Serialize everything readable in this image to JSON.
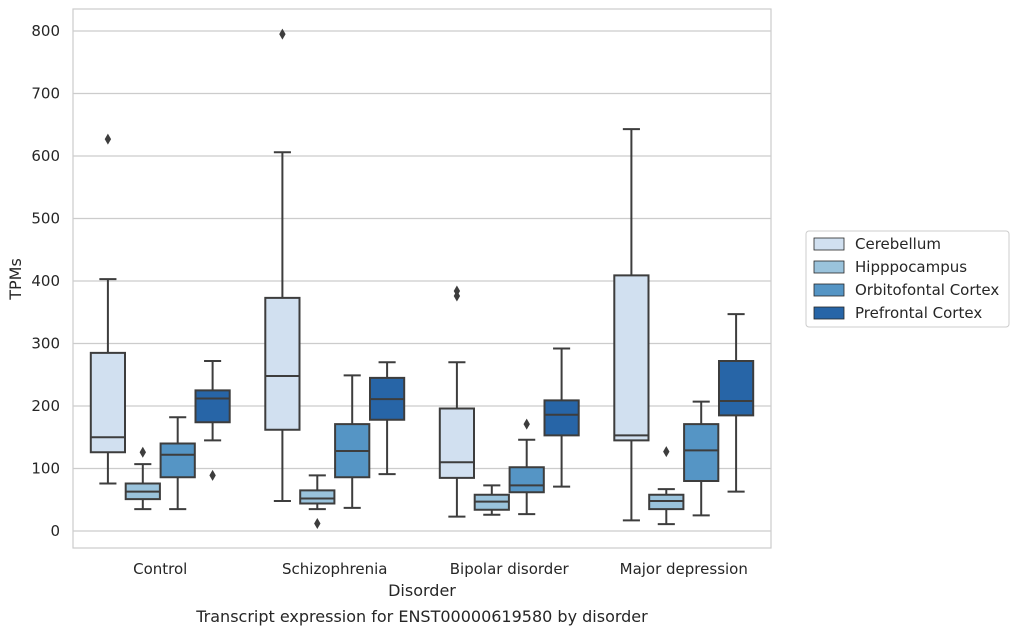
{
  "chart_data": {
    "type": "box",
    "title": "",
    "caption": "Transcript expression for ENST00000619580 by disorder",
    "xlabel": "Disorder",
    "ylabel": "TPMs",
    "ylim": [
      -28,
      835
    ],
    "yticks": [
      0,
      100,
      200,
      300,
      400,
      500,
      600,
      700,
      800
    ],
    "grid": "horizontal",
    "legend_placement": "right",
    "categories": [
      "Control",
      "Schizophrenia",
      "Bipolar disorder",
      "Major depression"
    ],
    "series": [
      {
        "name": "Cerebellum",
        "color": "#d1e0f0",
        "boxes": [
          {
            "whislo": 76,
            "q1": 126,
            "med": 150,
            "q3": 285,
            "whishi": 403,
            "fliers": [
              627
            ]
          },
          {
            "whislo": 48,
            "q1": 162,
            "med": 248,
            "q3": 373,
            "whishi": 606,
            "fliers": [
              795
            ]
          },
          {
            "whislo": 23,
            "q1": 85,
            "med": 110,
            "q3": 196,
            "whishi": 270,
            "fliers": [
              376,
              384
            ]
          },
          {
            "whislo": 17,
            "q1": 145,
            "med": 153,
            "q3": 409,
            "whishi": 643,
            "fliers": []
          }
        ]
      },
      {
        "name": "Hipppocampus",
        "color": "#9ac3dc",
        "boxes": [
          {
            "whislo": 35,
            "q1": 51,
            "med": 63,
            "q3": 76,
            "whishi": 107,
            "fliers": [
              126
            ]
          },
          {
            "whislo": 35,
            "q1": 44,
            "med": 52,
            "q3": 65,
            "whishi": 89,
            "fliers": [
              12
            ]
          },
          {
            "whislo": 26,
            "q1": 34,
            "med": 47,
            "q3": 58,
            "whishi": 73,
            "fliers": []
          },
          {
            "whislo": 11,
            "q1": 35,
            "med": 48,
            "q3": 58,
            "whishi": 67,
            "fliers": [
              127
            ]
          }
        ]
      },
      {
        "name": "Orbitofontal Cortex",
        "color": "#5595c5",
        "boxes": [
          {
            "whislo": 35,
            "q1": 86,
            "med": 122,
            "q3": 140,
            "whishi": 182,
            "fliers": []
          },
          {
            "whislo": 37,
            "q1": 86,
            "med": 128,
            "q3": 171,
            "whishi": 249,
            "fliers": []
          },
          {
            "whislo": 27,
            "q1": 62,
            "med": 73,
            "q3": 102,
            "whishi": 146,
            "fliers": [
              171
            ]
          },
          {
            "whislo": 25,
            "q1": 80,
            "med": 129,
            "q3": 171,
            "whishi": 207,
            "fliers": []
          }
        ]
      },
      {
        "name": "Prefrontal Cortex",
        "color": "#2765a7",
        "boxes": [
          {
            "whislo": 145,
            "q1": 174,
            "med": 212,
            "q3": 225,
            "whishi": 272,
            "fliers": [
              89
            ]
          },
          {
            "whislo": 91,
            "q1": 178,
            "med": 211,
            "q3": 245,
            "whishi": 270,
            "fliers": []
          },
          {
            "whislo": 71,
            "q1": 153,
            "med": 186,
            "q3": 209,
            "whishi": 292,
            "fliers": []
          },
          {
            "whislo": 63,
            "q1": 185,
            "med": 208,
            "q3": 272,
            "whishi": 347,
            "fliers": []
          }
        ]
      }
    ]
  }
}
